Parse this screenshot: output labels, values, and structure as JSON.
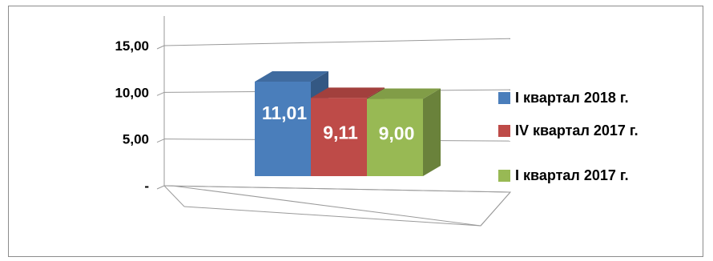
{
  "chart_data": {
    "type": "bar",
    "style": "3d-clustered-column",
    "categories": [
      ""
    ],
    "series": [
      {
        "name": "I квартал 2018 г.",
        "values": [
          11.01
        ],
        "label": "11,01",
        "color": "#4a7ebb"
      },
      {
        "name": "IV квартал 2017 г.",
        "values": [
          9.11
        ],
        "label": "9,11",
        "color": "#be4b48"
      },
      {
        "name": "I квартал 2017 г.",
        "values": [
          9.0
        ],
        "label": "9,00",
        "color": "#98b954"
      }
    ],
    "ylim": [
      0,
      15
    ],
    "yticks": [
      0,
      5,
      10,
      15
    ],
    "ytick_labels": [
      "-",
      "5,00",
      "10,00",
      "15,00"
    ],
    "grid": true,
    "legend_position": "right"
  }
}
